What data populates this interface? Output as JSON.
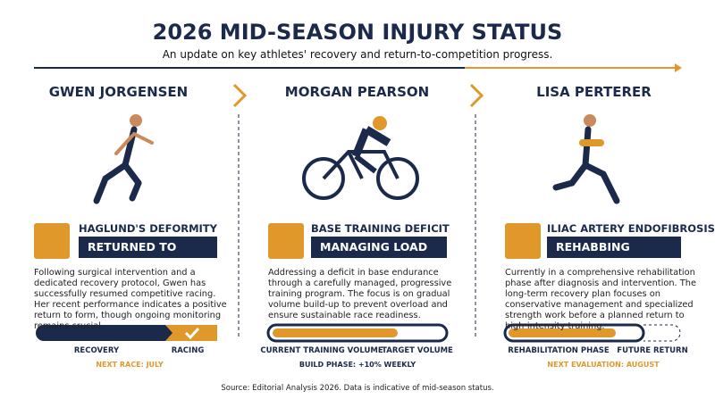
{
  "header": {
    "title": "2026 MID-SEASON INJURY STATUS",
    "subtitle": "An update on key athletes' recovery and return-to-competition progress."
  },
  "athletes": [
    {
      "name": "GWEN JORGENSEN",
      "condition": "HAGLUND'S DEFORMITY",
      "status": "RETURNED TO RACING",
      "description": "Following surgical intervention and a dedicated recovery protocol, Gwen has successfully resumed competitive racing. Her recent performance indicates a positive return to form, though ongoing monitoring remains crucial.",
      "progress_start": "RECOVERY",
      "progress_end": "RACING",
      "note": "NEXT RACE: JULY"
    },
    {
      "name": "MORGAN PEARSON",
      "condition": "BASE TRAINING DEFICIT",
      "status": "MANAGING LOAD",
      "description": "Addressing a deficit in base endurance through a carefully managed, progressive training program. The focus is on gradual volume build-up to prevent overload and ensure sustainable race readiness.",
      "progress_start": "CURRENT TRAINING VOLUME",
      "progress_end": "TARGET VOLUME",
      "note": "BUILD PHASE: +10% WEEKLY"
    },
    {
      "name": "LISA PERTERER",
      "condition": "ILIAC ARTERY ENDOFIBROSIS",
      "status": "REHABBING",
      "description": "Currently in a comprehensive rehabilitation phase after diagnosis and intervention. The long-term recovery plan focuses on conservative management and specialized strength work before a planned return to high-intensity training.",
      "progress_start": "REHABILITATION PHASE",
      "progress_end": "FUTURE RETURN",
      "note": "NEXT EVALUATION: AUGUST"
    }
  ],
  "footer": {
    "source": "Source: Editorial Analysis 2026. Data is indicative of mid-season status."
  }
}
